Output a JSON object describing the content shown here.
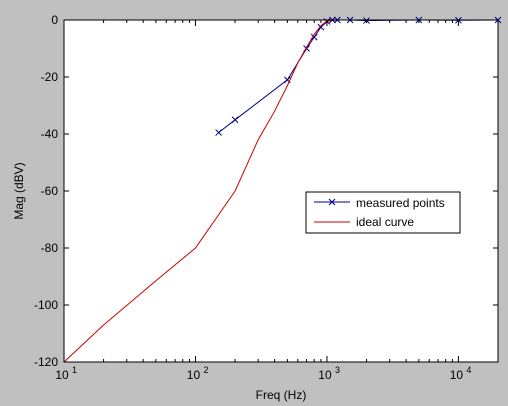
{
  "chart_data": {
    "type": "line",
    "xlabel": "Freq (Hz)",
    "ylabel": "Mag (dBV)",
    "xscale": "log",
    "xlim": [
      10,
      20000
    ],
    "ylim": [
      -120,
      0
    ],
    "yticks": [
      0,
      -20,
      -40,
      -60,
      -80,
      -100,
      -120
    ],
    "ytick_labels": [
      "0",
      "-20",
      "-40",
      "-60",
      "-80",
      "-100",
      "-120"
    ],
    "xticks": [
      {
        "base": "10",
        "exp": "1",
        "value": 10
      },
      {
        "base": "10",
        "exp": "2",
        "value": 100
      },
      {
        "base": "10",
        "exp": "3",
        "value": 1000
      },
      {
        "base": "10",
        "exp": "4",
        "value": 10000
      }
    ],
    "grid": false,
    "legend_position": "center-right",
    "figure_background": "#c0c0c0",
    "axes_background": "#ffffff",
    "series": [
      {
        "name": "measured points",
        "color": "#00008b",
        "marker": "x",
        "x": [
          150,
          200,
          500,
          700,
          800,
          900,
          1000,
          1100,
          1200,
          1500,
          2000,
          5000,
          10000,
          20000
        ],
        "y": [
          -39.5,
          -35,
          -21,
          -10,
          -6,
          -2.5,
          -0.5,
          0,
          0,
          0,
          -0.2,
          0,
          -0.1,
          0
        ]
      },
      {
        "name": "ideal curve",
        "color": "#cc0000",
        "x": [
          10,
          20,
          50,
          100,
          200,
          300,
          400,
          500,
          600,
          700,
          800,
          900,
          1000,
          1200,
          1500,
          2000,
          5000,
          10000,
          20000
        ],
        "y": [
          -120,
          -107,
          -91.5,
          -80,
          -60,
          -42,
          -32,
          -23,
          -15,
          -9.5,
          -5,
          -2,
          -0.3,
          0,
          0,
          0,
          0,
          0,
          0
        ]
      }
    ]
  }
}
